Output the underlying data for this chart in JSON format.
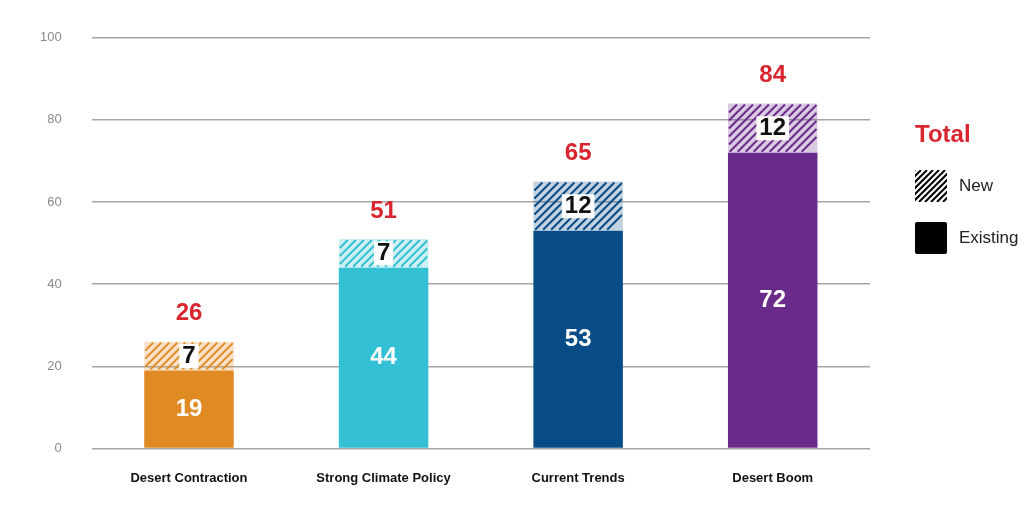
{
  "chart_data": {
    "type": "bar",
    "stacked": true,
    "categories": [
      "Desert Contraction",
      "Strong Climate Policy",
      "Current Trends",
      "Desert Boom"
    ],
    "series": [
      {
        "name": "Existing",
        "color": "#000000",
        "colors": [
          "#e08a24",
          "#33c0d4",
          "#074c86",
          "#6a2a8a"
        ],
        "values": [
          19,
          44,
          53,
          72
        ]
      },
      {
        "name": "New",
        "color": "#000000",
        "colors": [
          "#e08a24",
          "#33c0d4",
          "#074c86",
          "#6a2a8a"
        ],
        "values": [
          7,
          7,
          12,
          12
        ]
      }
    ],
    "totals": [
      "26",
      "51",
      "65",
      "84"
    ],
    "data_labels": true,
    "legend_title": "Total",
    "legend": "right",
    "ylim": [
      0,
      100
    ],
    "yticks": [
      0,
      20,
      40,
      60,
      80,
      100
    ],
    "grid": "y"
  }
}
